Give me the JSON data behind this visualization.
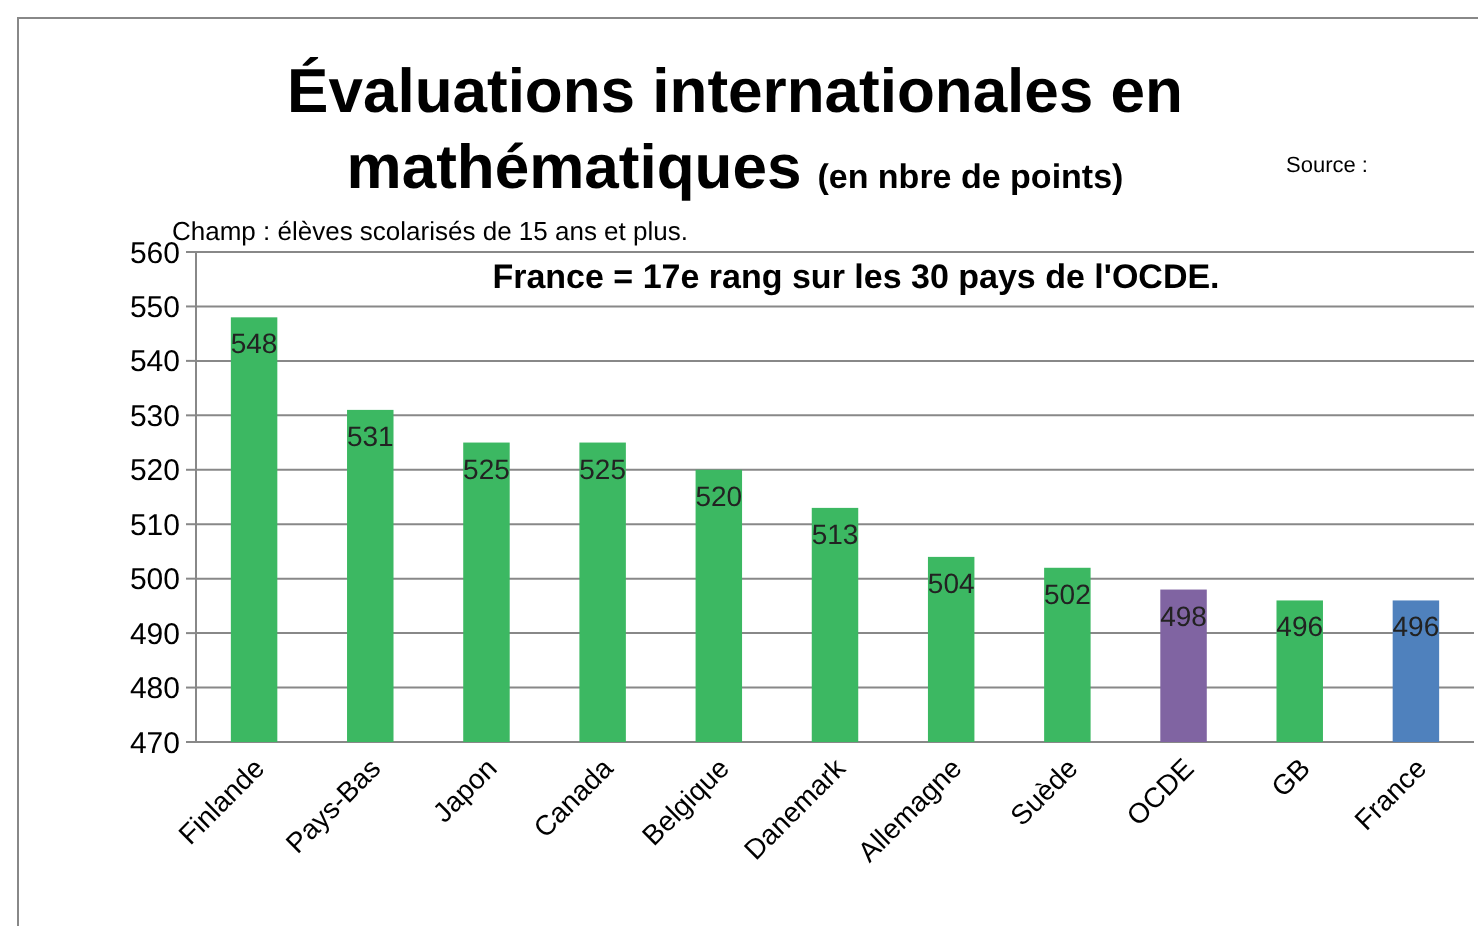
{
  "chart_data": {
    "type": "bar",
    "title": "Évaluations internationales en mathématiques",
    "subtitle": "(en nbre de points)",
    "categories": [
      "Finlande",
      "Pays-Bas",
      "Japon",
      "Canada",
      "Belgique",
      "Danemark",
      "Allemagne",
      "Suède",
      "OCDE",
      "GB",
      "France"
    ],
    "values": [
      548,
      531,
      525,
      525,
      520,
      513,
      504,
      502,
      498,
      496,
      496
    ],
    "colors": [
      "#3cb862",
      "#3cb862",
      "#3cb862",
      "#3cb862",
      "#3cb862",
      "#3cb862",
      "#3cb862",
      "#3cb862",
      "#8064a2",
      "#3cb862",
      "#4f81bd"
    ],
    "data_labels": true,
    "ylim": [
      470,
      560
    ],
    "yticks": [
      470,
      480,
      490,
      500,
      510,
      520,
      530,
      540,
      550,
      560
    ],
    "grid": "y",
    "annotations": [
      "Source :",
      "Champ : élèves scolarisés de 15 ans et plus.",
      "France = 17e rang sur les 30 pays de l'OCDE."
    ]
  }
}
